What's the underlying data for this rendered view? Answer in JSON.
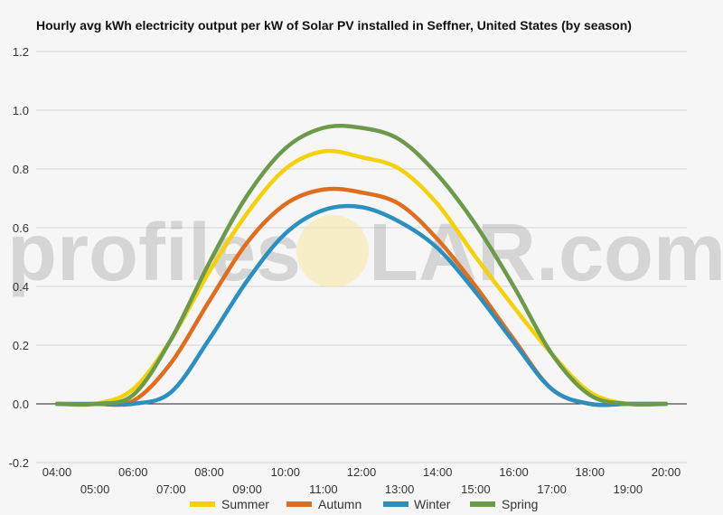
{
  "chart_data": {
    "type": "line",
    "title": "Hourly avg kWh electricity output per kW of Solar PV installed in Seffner, United States (by season)",
    "xlabel": "",
    "ylabel": "",
    "x": [
      "04:00",
      "05:00",
      "06:00",
      "07:00",
      "08:00",
      "09:00",
      "10:00",
      "11:00",
      "12:00",
      "13:00",
      "14:00",
      "15:00",
      "16:00",
      "17:00",
      "18:00",
      "19:00",
      "20:00"
    ],
    "ylim": [
      -0.2,
      1.2
    ],
    "yticks": [
      "-0.2",
      "0.0",
      "0.2",
      "0.4",
      "0.6",
      "0.8",
      "1.0",
      "1.2"
    ],
    "grid": true,
    "legend_position": "bottom",
    "series": [
      {
        "name": "Summer",
        "color": "#f5d10a",
        "values": [
          0.0,
          0.0,
          0.05,
          0.22,
          0.45,
          0.65,
          0.8,
          0.86,
          0.84,
          0.8,
          0.68,
          0.5,
          0.33,
          0.17,
          0.04,
          0.0,
          0.0
        ]
      },
      {
        "name": "Autumn",
        "color": "#e06c1e",
        "values": [
          0.0,
          0.0,
          0.01,
          0.14,
          0.35,
          0.55,
          0.68,
          0.73,
          0.72,
          0.68,
          0.56,
          0.4,
          0.22,
          0.05,
          0.0,
          0.0,
          0.0
        ]
      },
      {
        "name": "Winter",
        "color": "#2b8fbf",
        "values": [
          0.0,
          0.0,
          0.0,
          0.04,
          0.22,
          0.42,
          0.58,
          0.66,
          0.67,
          0.62,
          0.53,
          0.38,
          0.21,
          0.05,
          0.0,
          0.0,
          0.0
        ]
      },
      {
        "name": "Spring",
        "color": "#6b9a4a",
        "values": [
          0.0,
          0.0,
          0.03,
          0.22,
          0.48,
          0.71,
          0.87,
          0.94,
          0.94,
          0.9,
          0.78,
          0.61,
          0.4,
          0.17,
          0.03,
          0.0,
          0.0
        ]
      }
    ]
  },
  "watermark": {
    "prefix": "profiles",
    "suffix": "LAR.com"
  }
}
